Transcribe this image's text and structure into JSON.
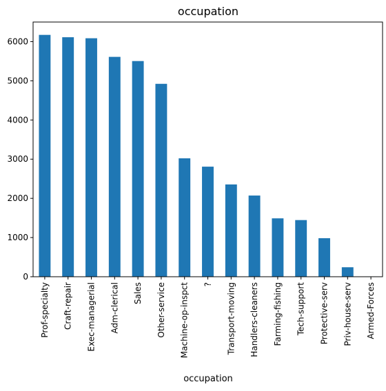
{
  "chart_data": {
    "type": "bar",
    "title": "occupation",
    "xlabel": "occupation",
    "ylabel": "",
    "categories": [
      "Prof-specialty",
      "Craft-repair",
      "Exec-managerial",
      "Adm-clerical",
      "Sales",
      "Other-service",
      "Machine-op-inspct",
      "?",
      "Transport-moving",
      "Handlers-cleaners",
      "Farming-fishing",
      "Tech-support",
      "Protective-serv",
      "Priv-house-serv",
      "Armed-Forces"
    ],
    "values": [
      6172,
      6112,
      6086,
      5611,
      5504,
      4923,
      3022,
      2809,
      2355,
      2072,
      1490,
      1446,
      983,
      242,
      9
    ],
    "ylim": [
      0,
      6500
    ],
    "yticks": [
      0,
      1000,
      2000,
      3000,
      4000,
      5000,
      6000
    ],
    "grid": false,
    "bar_color": "#1f77b4"
  }
}
